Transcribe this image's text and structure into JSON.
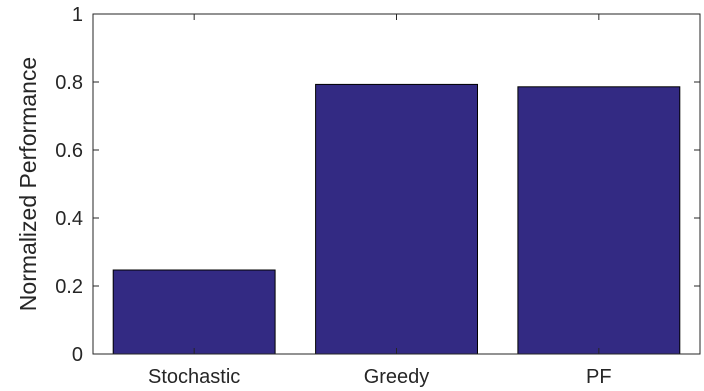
{
  "chart_data": {
    "type": "bar",
    "title": "",
    "xlabel": "",
    "ylabel": "Normalized Performance",
    "categories": [
      "Stochastic",
      "Greedy",
      "PF"
    ],
    "values": [
      0.247,
      0.793,
      0.786
    ],
    "ylim": [
      0,
      1
    ],
    "yticks": [
      "0",
      "0.2",
      "0.4",
      "0.6",
      "0.8",
      "1"
    ],
    "grid": false,
    "legend": "none",
    "colors": {
      "bar": "#332a83",
      "bar_edge": "#000000",
      "axis": "#262626"
    }
  }
}
